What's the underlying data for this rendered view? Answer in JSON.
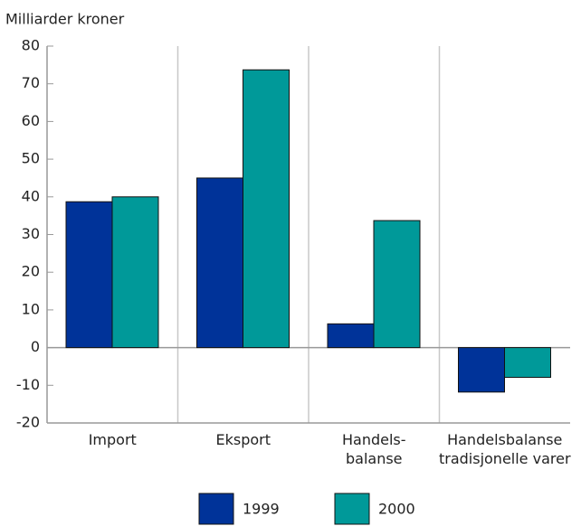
{
  "chart_data": {
    "type": "bar",
    "y_label": "Milliarder kroner",
    "categories": [
      "Import",
      "Eksport",
      "Handels-\nbalanse",
      "Handelsbalanse\ntradisjonelle varer"
    ],
    "series": [
      {
        "name": "1999",
        "color": "#003399",
        "values": [
          38.7,
          45,
          6.3,
          -11.8
        ]
      },
      {
        "name": "2000",
        "color": "#009999",
        "values": [
          40,
          73.7,
          33.7,
          -7.9
        ]
      }
    ],
    "ylim": [
      -20,
      80
    ],
    "yticks": [
      -20,
      -10,
      0,
      10,
      20,
      30,
      40,
      50,
      60,
      70,
      80
    ]
  }
}
